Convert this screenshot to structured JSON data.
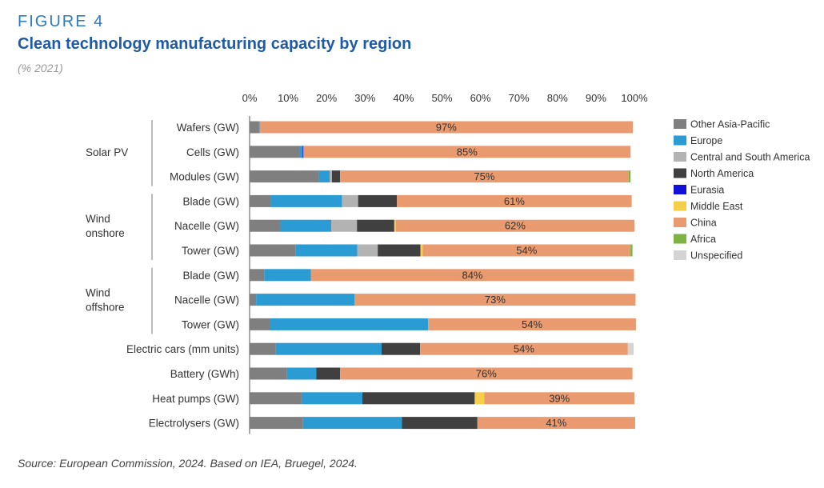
{
  "figure_label": "FIGURE 4",
  "title": "Clean technology manufacturing capacity by region",
  "subtitle": "(% 2021)",
  "source": "Source: European Commission, 2024. Based on IEA, Bruegel, 2024.",
  "chart_data": {
    "type": "bar",
    "orientation": "horizontal",
    "stacked": true,
    "xlim": [
      0,
      100
    ],
    "x_ticks": [
      "0%",
      "10%",
      "20%",
      "30%",
      "40%",
      "50%",
      "60%",
      "70%",
      "80%",
      "90%",
      "100%"
    ],
    "grid": false,
    "legend_position": "right",
    "groups": [
      {
        "label": "Solar PV",
        "rows": [
          0,
          1,
          2
        ]
      },
      {
        "label": "Wind onshore",
        "lines": [
          "Wind",
          "onshore"
        ],
        "rows": [
          3,
          4,
          5
        ]
      },
      {
        "label": "Wind offshore",
        "lines": [
          "Wind",
          "offshore"
        ],
        "rows": [
          6,
          7,
          8
        ]
      }
    ],
    "categories": [
      "Wafers (GW)",
      "Cells (GW)",
      "Modules (GW)",
      "Blade (GW)",
      "Nacelle (GW)",
      "Tower (GW)",
      "Blade (GW)",
      "Nacelle (GW)",
      "Tower (GW)",
      "Electric cars (mm units)",
      "Battery (GWh)",
      "Heat pumps (GW)",
      "Electrolysers (GW)"
    ],
    "china_labels": [
      "97%",
      "85%",
      "75%",
      "61%",
      "62%",
      "54%",
      "84%",
      "73%",
      "54%",
      "54%",
      "76%",
      "39%",
      "41%"
    ],
    "series": [
      {
        "name": "Other Asia-Pacific",
        "color": "#7f7f7f",
        "values": [
          2.3,
          13,
          18,
          5.5,
          8,
          12,
          3.8,
          1.7,
          5.4,
          6.8,
          9.7,
          13.5,
          13.9
        ]
      },
      {
        "name": "Europe",
        "color": "#2b9bd3",
        "values": [
          0.3,
          0.8,
          2.8,
          18.5,
          13.2,
          16,
          12.1,
          25.6,
          41,
          27.5,
          7.6,
          15.8,
          25.7
        ]
      },
      {
        "name": "Central and South America",
        "color": "#b3b3b3",
        "values": [
          0,
          0,
          0.6,
          4.2,
          6.7,
          5.3,
          0,
          0,
          0,
          0,
          0,
          0,
          0
        ]
      },
      {
        "name": "North America",
        "color": "#404040",
        "values": [
          0,
          0,
          2.1,
          10.1,
          9.7,
          11.1,
          0,
          0,
          0,
          10,
          6.2,
          29.2,
          19.6
        ]
      },
      {
        "name": "Eurasia",
        "color": "#1010d8",
        "values": [
          0,
          0.2,
          0,
          0,
          0,
          0,
          0,
          0,
          0,
          0,
          0,
          0,
          0
        ]
      },
      {
        "name": "Middle East",
        "color": "#f5cf4a",
        "values": [
          0,
          0,
          0,
          0,
          0.4,
          0.6,
          0,
          0,
          0,
          0,
          0,
          2.5,
          0
        ]
      },
      {
        "name": "China",
        "color": "#e99a6f",
        "values": [
          97,
          85,
          75,
          61,
          62,
          54,
          84,
          73,
          54,
          54,
          76,
          39,
          41
        ]
      },
      {
        "name": "Africa",
        "color": "#7cb342",
        "values": [
          0,
          0,
          0.5,
          0,
          0,
          0.5,
          0,
          0,
          0,
          0,
          0,
          0,
          0
        ]
      },
      {
        "name": "Unspecified",
        "color": "#d4d4d4",
        "values": [
          0,
          0,
          0,
          0,
          0,
          0,
          0,
          0,
          0,
          1.5,
          0,
          0,
          0
        ]
      }
    ]
  }
}
